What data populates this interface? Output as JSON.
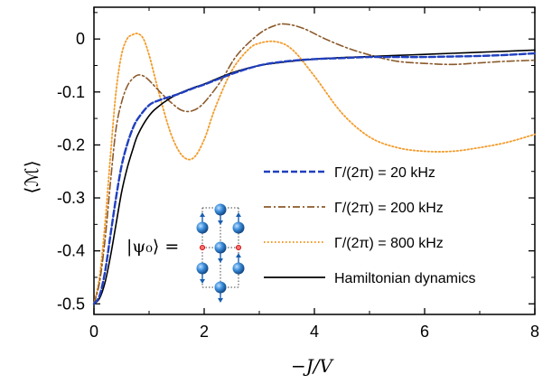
{
  "chart_data": {
    "type": "line",
    "xlabel": "−J/V",
    "ylabel": "⟨ℳ⟩",
    "xlim": [
      0,
      8
    ],
    "ylim": [
      -0.52,
      0.06
    ],
    "x_ticks": [
      0,
      2,
      4,
      6,
      8
    ],
    "x_tick_labels": [
      "0",
      "2",
      "4",
      "6",
      "8"
    ],
    "y_ticks": [
      0,
      -0.1,
      -0.2,
      -0.3,
      -0.4,
      -0.5
    ],
    "y_tick_labels": [
      "0",
      "-0.1",
      "-0.2",
      "-0.3",
      "-0.4",
      "-0.5"
    ],
    "grid": false,
    "legend_position": "lower-right",
    "inset_label": "|ψ₀⟩ =",
    "series": [
      {
        "name": "Γ/(2π) = 20 kHz",
        "color": "#1f3fbf",
        "style": "dashed",
        "x": [
          0,
          0.1,
          0.2,
          0.3,
          0.4,
          0.5,
          0.6,
          0.7,
          0.8,
          1.0,
          1.2,
          1.5,
          1.8,
          2.0,
          2.5,
          3.0,
          3.5,
          4.0,
          4.5,
          5.0,
          5.5,
          6.0,
          6.5,
          7.0,
          7.5,
          8.0
        ],
        "y": [
          -0.5,
          -0.485,
          -0.44,
          -0.37,
          -0.3,
          -0.24,
          -0.2,
          -0.17,
          -0.15,
          -0.125,
          -0.115,
          -0.105,
          -0.093,
          -0.086,
          -0.066,
          -0.05,
          -0.042,
          -0.038,
          -0.036,
          -0.034,
          -0.034,
          -0.034,
          -0.033,
          -0.032,
          -0.03,
          -0.027
        ]
      },
      {
        "name": "Γ/(2π) = 200 kHz",
        "color": "#8b5a2b",
        "style": "dashdot",
        "x": [
          0,
          0.1,
          0.2,
          0.3,
          0.4,
          0.5,
          0.6,
          0.7,
          0.8,
          0.9,
          1.0,
          1.2,
          1.4,
          1.6,
          1.8,
          2.0,
          2.3,
          2.6,
          3.0,
          3.3,
          3.5,
          3.8,
          4.2,
          4.6,
          5.0,
          5.5,
          6.0,
          6.5,
          7.0,
          7.5,
          8.0
        ],
        "y": [
          -0.5,
          -0.46,
          -0.38,
          -0.27,
          -0.17,
          -0.12,
          -0.09,
          -0.075,
          -0.068,
          -0.07,
          -0.078,
          -0.1,
          -0.12,
          -0.135,
          -0.135,
          -0.12,
          -0.08,
          -0.03,
          0.01,
          0.026,
          0.028,
          0.02,
          0.0,
          -0.017,
          -0.03,
          -0.042,
          -0.046,
          -0.048,
          -0.045,
          -0.042,
          -0.04
        ]
      },
      {
        "name": "Γ/(2π) = 800 kHz",
        "color": "#f39c2b",
        "style": "dotted",
        "x": [
          0,
          0.1,
          0.2,
          0.3,
          0.4,
          0.5,
          0.6,
          0.7,
          0.8,
          0.9,
          1.0,
          1.1,
          1.2,
          1.4,
          1.6,
          1.8,
          2.0,
          2.2,
          2.5,
          2.8,
          3.0,
          3.3,
          3.6,
          4.0,
          4.5,
          5.0,
          5.5,
          6.0,
          6.5,
          7.0,
          7.5,
          8.0
        ],
        "y": [
          -0.5,
          -0.45,
          -0.35,
          -0.22,
          -0.1,
          -0.03,
          0.0,
          0.008,
          0.01,
          0.0,
          -0.03,
          -0.07,
          -0.11,
          -0.18,
          -0.22,
          -0.225,
          -0.19,
          -0.13,
          -0.06,
          -0.02,
          -0.008,
          -0.005,
          -0.02,
          -0.07,
          -0.14,
          -0.185,
          -0.205,
          -0.212,
          -0.212,
          -0.205,
          -0.195,
          -0.18
        ]
      },
      {
        "name": "Hamiltonian dynamics",
        "color": "#000000",
        "style": "solid",
        "x": [
          0,
          0.1,
          0.2,
          0.3,
          0.4,
          0.5,
          0.6,
          0.7,
          0.8,
          1.0,
          1.2,
          1.5,
          1.8,
          2.0,
          2.5,
          3.0,
          3.5,
          4.0,
          4.5,
          5.0,
          5.5,
          6.0,
          6.5,
          7.0,
          7.5,
          8.0
        ],
        "y": [
          -0.5,
          -0.49,
          -0.46,
          -0.41,
          -0.35,
          -0.29,
          -0.245,
          -0.21,
          -0.18,
          -0.145,
          -0.125,
          -0.105,
          -0.092,
          -0.085,
          -0.064,
          -0.05,
          -0.043,
          -0.038,
          -0.035,
          -0.033,
          -0.031,
          -0.029,
          -0.027,
          -0.025,
          -0.023,
          -0.021
        ]
      }
    ]
  }
}
